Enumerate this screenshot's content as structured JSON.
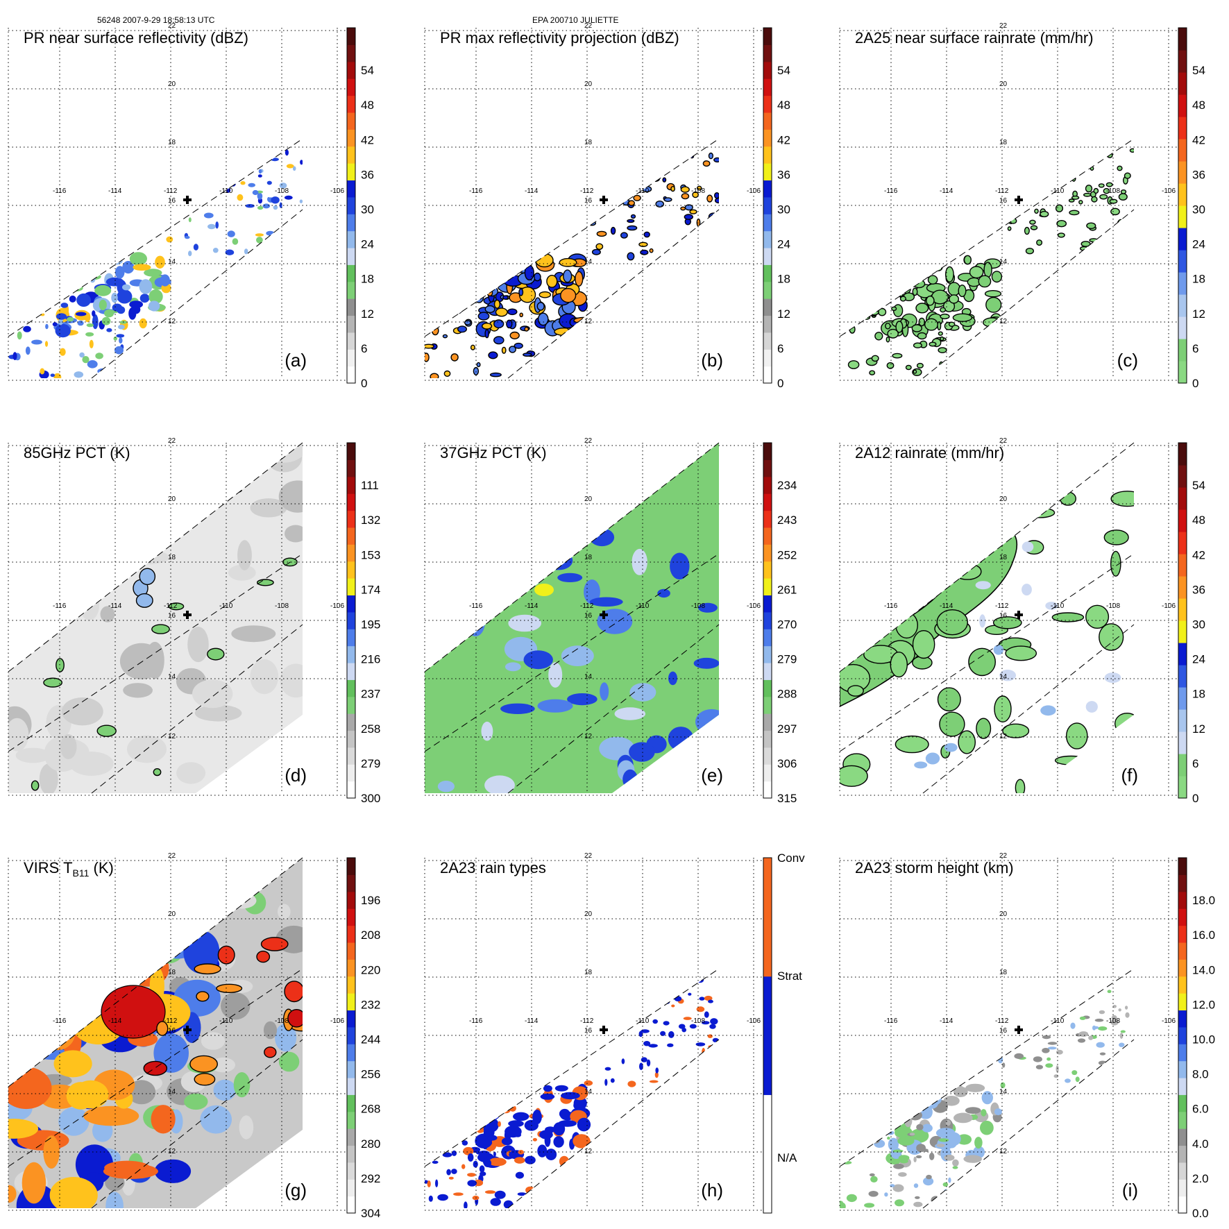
{
  "header": {
    "left": "56248 2007-9-29 18:58:13 UTC",
    "center": "EPA 200710 JULIETTE"
  },
  "lon_labels": [
    "-116",
    "-114",
    "-112",
    "-110",
    "-108",
    "-106"
  ],
  "lat_labels": [
    "22",
    "20",
    "18",
    "16",
    "14",
    "12"
  ],
  "panels": [
    {
      "id": "a",
      "title": "PR near surface reflectivity (dBZ)",
      "label": "(a)",
      "field": "swath",
      "cb_colors": [
        "#ffffff",
        "#f1f1f1",
        "#d6d6d6",
        "#b4b4b4",
        "#8f8f8f",
        "#7dcf76",
        "#62c05d",
        "#cdd9f2",
        "#92b9ec",
        "#4e7dea",
        "#1f43dd",
        "#0a1bd1",
        "#f1f01a",
        "#ffc21c",
        "#fb9322",
        "#f4661e",
        "#ec3018",
        "#d01010",
        "#a20b0b",
        "#701010",
        "#4b0c0c"
      ],
      "cb_labels": [
        "0",
        "6",
        "12",
        "18",
        "24",
        "30",
        "36",
        "42",
        "48",
        "54"
      ]
    },
    {
      "id": "b",
      "title": "PR max reflectivity projection (dBZ)",
      "label": "(b)",
      "field": "swath",
      "cb_colors": [
        "#ffffff",
        "#f1f1f1",
        "#d6d6d6",
        "#b4b4b4",
        "#8f8f8f",
        "#7dcf76",
        "#62c05d",
        "#cdd9f2",
        "#92b9ec",
        "#4e7dea",
        "#1f43dd",
        "#0a1bd1",
        "#f1f01a",
        "#ffc21c",
        "#fb9322",
        "#f4661e",
        "#ec3018",
        "#d01010",
        "#a20b0b",
        "#701010",
        "#4b0c0c"
      ],
      "cb_labels": [
        "0",
        "6",
        "12",
        "18",
        "24",
        "30",
        "36",
        "42",
        "48",
        "54"
      ]
    },
    {
      "id": "c",
      "title": "2A25 near surface rainrate (mm/hr)",
      "label": "(c)",
      "field": "swath",
      "cb_colors": [
        "#8ad982",
        "#7dcf76",
        "#cdd9f2",
        "#a9c6ee",
        "#6f9aec",
        "#2f57e2",
        "#0a1bd1",
        "#f1f01a",
        "#ffc21c",
        "#fb9322",
        "#f4661e",
        "#ec3018",
        "#d01010",
        "#a20b0b",
        "#701010",
        "#4b0c0c"
      ],
      "cb_labels": [
        "0",
        "6",
        "12",
        "18",
        "24",
        "30",
        "36",
        "42",
        "48",
        "54"
      ]
    },
    {
      "id": "d",
      "title": "85GHz PCT (K)",
      "label": "(d)",
      "field": "wide",
      "cb_colors": [
        "#ffffff",
        "#eeeeee",
        "#dadada",
        "#c4c4c4",
        "#a9a9a9",
        "#7dcf76",
        "#62c05d",
        "#cdd9f2",
        "#92b9ec",
        "#4e7dea",
        "#1f43dd",
        "#0a1bd1",
        "#f1f01a",
        "#ffc21c",
        "#fb9322",
        "#f4661e",
        "#ec3018",
        "#d01010",
        "#a20b0b",
        "#701010",
        "#4b0c0c"
      ],
      "cb_labels": [
        "300",
        "279",
        "258",
        "237",
        "216",
        "195",
        "174",
        "153",
        "132",
        "111"
      ]
    },
    {
      "id": "e",
      "title": "37GHz PCT (K)",
      "label": "(e)",
      "field": "wide",
      "cb_colors": [
        "#ffffff",
        "#eeeeee",
        "#dadada",
        "#c4c4c4",
        "#a9a9a9",
        "#7dcf76",
        "#62c05d",
        "#cdd9f2",
        "#92b9ec",
        "#4e7dea",
        "#1f43dd",
        "#0a1bd1",
        "#f1f01a",
        "#ffc21c",
        "#fb9322",
        "#f4661e",
        "#ec3018",
        "#d01010",
        "#a20b0b",
        "#701010",
        "#4b0c0c"
      ],
      "cb_labels": [
        "315",
        "306",
        "297",
        "288",
        "279",
        "270",
        "261",
        "252",
        "243",
        "234"
      ]
    },
    {
      "id": "f",
      "title": "2A12 rainrate (mm/hr)",
      "label": "(f)",
      "field": "wide",
      "cb_colors": [
        "#8ad982",
        "#7dcf76",
        "#cdd9f2",
        "#a9c6ee",
        "#6f9aec",
        "#2f57e2",
        "#0a1bd1",
        "#f1f01a",
        "#ffc21c",
        "#fb9322",
        "#f4661e",
        "#ec3018",
        "#d01010",
        "#a20b0b",
        "#701010",
        "#4b0c0c"
      ],
      "cb_labels": [
        "0",
        "6",
        "12",
        "18",
        "24",
        "30",
        "36",
        "42",
        "48",
        "54"
      ]
    },
    {
      "id": "g",
      "title": "VIRS T",
      "title_sub": "B11",
      "title_tail": " (K)",
      "label": "(g)",
      "field": "wide",
      "cb_colors": [
        "#ffffff",
        "#eeeeee",
        "#dadada",
        "#c4c4c4",
        "#a9a9a9",
        "#7dcf76",
        "#62c05d",
        "#cdd9f2",
        "#92b9ec",
        "#4e7dea",
        "#1f43dd",
        "#0a1bd1",
        "#f1f01a",
        "#ffc21c",
        "#fb9322",
        "#f4661e",
        "#ec3018",
        "#d01010",
        "#a20b0b",
        "#701010",
        "#4b0c0c"
      ],
      "cb_labels": [
        "304",
        "292",
        "280",
        "268",
        "256",
        "244",
        "232",
        "220",
        "208",
        "196"
      ]
    },
    {
      "id": "h",
      "title": "2A23 rain types",
      "label": "(h)",
      "field": "swath",
      "cb_colors": [
        "#ffffff",
        "#0a1bd1",
        "#f4661e"
      ],
      "cb_labels": [
        "N/A",
        "Strat",
        "Conv"
      ]
    },
    {
      "id": "i",
      "title": "2A23 storm height (km)",
      "label": "(i)",
      "field": "swath",
      "cb_colors": [
        "#ffffff",
        "#eeeeee",
        "#d6d6d6",
        "#b4b4b4",
        "#8f8f8f",
        "#7dcf76",
        "#62c05d",
        "#cdd9f2",
        "#92b9ec",
        "#4e7dea",
        "#1f43dd",
        "#0a1bd1",
        "#f1f01a",
        "#ffc21c",
        "#fb9322",
        "#f4661e",
        "#ec3018",
        "#d01010",
        "#a20b0b",
        "#701010",
        "#4b0c0c"
      ],
      "cb_labels": [
        "0.0",
        "2.0",
        "4.0",
        "6.0",
        "8.0",
        "10.0",
        "12.0",
        "14.0",
        "16.0",
        "18.0"
      ]
    }
  ]
}
